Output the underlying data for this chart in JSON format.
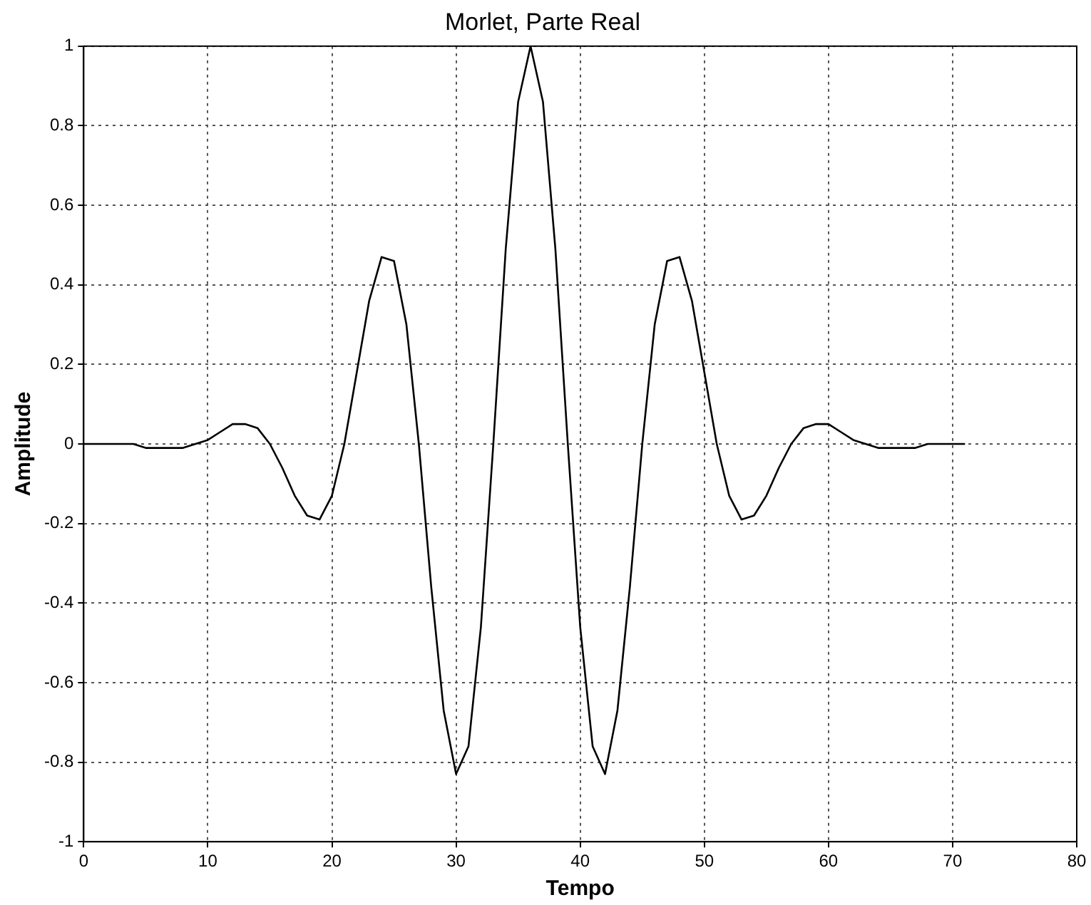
{
  "chart_data": {
    "type": "line",
    "title": "Morlet, Parte Real",
    "xlabel": "Tempo",
    "ylabel": "Amplitude",
    "xlim": [
      0,
      80
    ],
    "xticks": [
      0,
      10,
      20,
      30,
      40,
      50,
      60,
      70,
      80
    ],
    "ylim": [
      -1,
      1
    ],
    "yticks": [
      -1,
      -0.8,
      -0.6,
      -0.4,
      -0.2,
      0,
      0.2,
      0.4,
      0.6,
      0.8,
      1
    ],
    "grid": true,
    "marker": "none",
    "line_style": "solid",
    "series": [
      {
        "color": "#000000",
        "x": [
          0,
          1,
          2,
          3,
          4,
          5,
          6,
          7,
          8,
          9,
          10,
          11,
          12,
          13,
          14,
          15,
          16,
          17,
          18,
          19,
          20,
          21,
          22,
          23,
          24,
          25,
          26,
          27,
          28,
          29,
          30,
          31,
          32,
          33,
          34,
          35,
          36,
          37,
          38,
          39,
          40,
          41,
          42,
          43,
          44,
          45,
          46,
          47,
          48,
          49,
          50,
          51,
          52,
          53,
          54,
          55,
          56,
          57,
          58,
          59,
          60,
          61,
          62,
          63,
          64,
          65,
          66,
          67,
          68,
          69,
          70,
          71
        ],
        "values": [
          0,
          0,
          0,
          0,
          0,
          -0.01,
          -0.01,
          -0.01,
          -0.01,
          0,
          0.01,
          0.03,
          0.05,
          0.05,
          0.04,
          0,
          -0.06,
          -0.13,
          -0.18,
          -0.19,
          -0.13,
          0,
          0.18,
          0.36,
          0.47,
          0.46,
          0.3,
          0,
          -0.36,
          -0.67,
          -0.83,
          -0.76,
          -0.46,
          0,
          0.49,
          0.86,
          1,
          0.86,
          0.49,
          0,
          -0.46,
          -0.76,
          -0.83,
          -0.67,
          -0.36,
          0,
          0.3,
          0.46,
          0.47,
          0.36,
          0.18,
          0,
          -0.13,
          -0.19,
          -0.18,
          -0.13,
          -0.06,
          0,
          0.04,
          0.05,
          0.05,
          0.03,
          0.01,
          0,
          -0.01,
          -0.01,
          -0.01,
          -0.01,
          0,
          0,
          0,
          0
        ]
      }
    ]
  }
}
